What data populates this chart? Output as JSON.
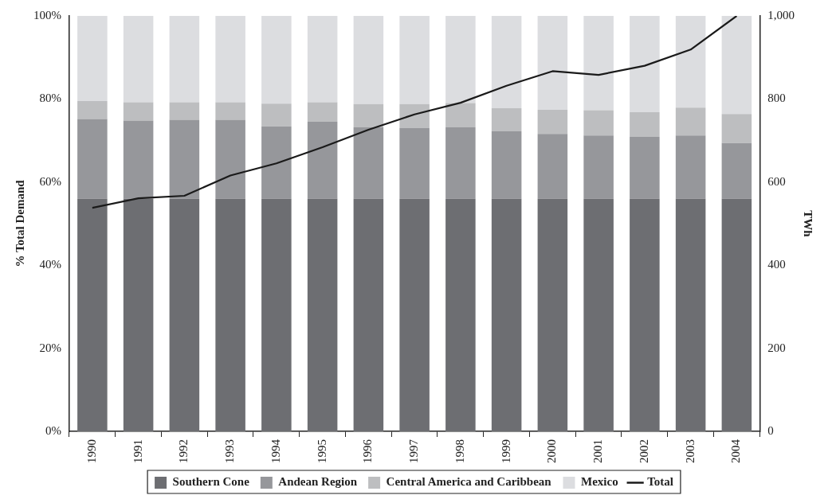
{
  "chart_data": {
    "type": "bar",
    "stacked": true,
    "ylabel": "% Total Demand",
    "y2label": "TWh",
    "categories": [
      "1990",
      "1991",
      "1992",
      "1993",
      "1994",
      "1995",
      "1996",
      "1997",
      "1998",
      "1999",
      "2000",
      "2001",
      "2002",
      "2003",
      "2004"
    ],
    "series": [
      {
        "name": "Southern Cone",
        "color": "#6d6e72",
        "values": [
          56,
          56,
          56,
          56,
          56,
          56,
          56,
          56,
          56,
          56,
          56,
          56,
          56,
          56,
          56
        ]
      },
      {
        "name": "Andean Region",
        "color": "#96979b",
        "values": [
          19.2,
          18.8,
          19,
          19,
          17.4,
          18.5,
          17.2,
          17,
          17.2,
          16.2,
          15.6,
          15.2,
          14.9,
          15.2,
          13.4
        ]
      },
      {
        "name": "Central America and Caribbean",
        "color": "#bdbec0",
        "values": [
          4.3,
          4.4,
          4.2,
          4.2,
          5.5,
          4.7,
          5.6,
          5.8,
          5.8,
          5.6,
          5.8,
          6.1,
          5.9,
          6.7,
          7
        ]
      },
      {
        "name": "Mexico",
        "color": "#dcdde0",
        "values": [
          20.5,
          20.8,
          20.8,
          20.8,
          21.1,
          20.8,
          21.2,
          21.2,
          21,
          22.2,
          22.6,
          22.7,
          23.2,
          22.1,
          23.6
        ]
      },
      {
        "name": "Total",
        "type": "line",
        "axis": "y2",
        "color": "#1a1a1a",
        "values": [
          538,
          561,
          567,
          616,
          645,
          684,
          726,
          763,
          791,
          832,
          867,
          858,
          880,
          919,
          1000
        ]
      }
    ],
    "ylim": [
      0,
      100
    ],
    "yticks": [
      {
        "value": 0,
        "label": "0%"
      },
      {
        "value": 20,
        "label": "20%"
      },
      {
        "value": 40,
        "label": "40%"
      },
      {
        "value": 60,
        "label": "60%"
      },
      {
        "value": 80,
        "label": "80%"
      },
      {
        "value": 100,
        "label": "100%"
      }
    ],
    "y2lim": [
      0,
      1000
    ],
    "y2ticks": [
      0,
      200,
      400,
      600,
      800,
      {
        "value": 1000,
        "label": "1,000"
      }
    ],
    "grid": false,
    "legend": "bottom",
    "marker": "none",
    "line_style": "solid"
  }
}
